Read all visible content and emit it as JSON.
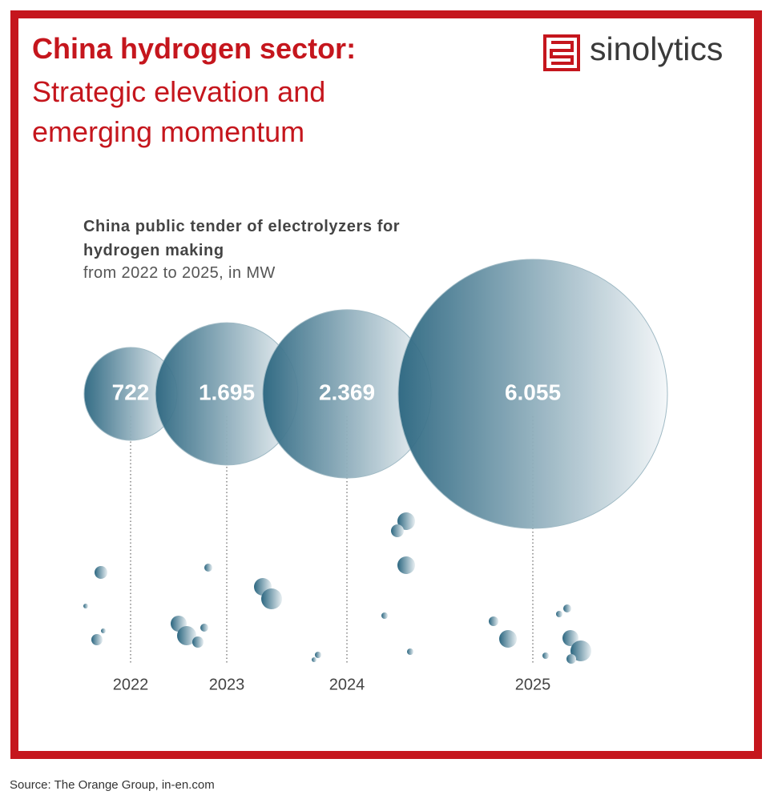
{
  "header": {
    "title": "China hydrogen sector:",
    "subtitle": "Strategic elevation and emerging momentum",
    "logo": "sinolytics"
  },
  "chart_data": {
    "type": "bubble",
    "title": "China public tender of electrolyzers for hydrogen making",
    "subtitle": "from 2022 to 2025, in MW",
    "categories": [
      "2022",
      "2023",
      "2024",
      "2025"
    ],
    "values": [
      722,
      1695,
      2369,
      6055
    ],
    "value_labels": [
      "722",
      "1.695",
      "2.369",
      "6.055"
    ],
    "color": "#2b6680"
  },
  "source": "Source: The Orange Group, in-en.com"
}
